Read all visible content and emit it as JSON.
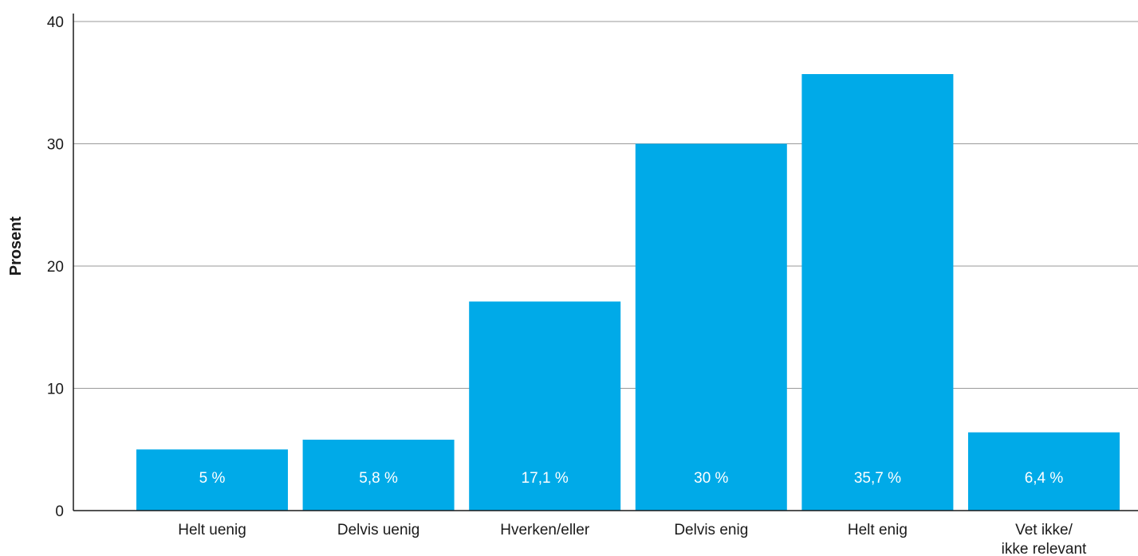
{
  "chart_data": {
    "type": "bar",
    "title": "",
    "xlabel": "",
    "ylabel": "Prosent",
    "ylim": [
      0,
      40
    ],
    "yticks": [
      0,
      10,
      20,
      30,
      40
    ],
    "grid": true,
    "bar_color": "#00aae8",
    "categories": [
      "Helt uenig",
      "Delvis uenig",
      "Hverken/eller",
      "Delvis enig",
      "Helt enig",
      "Vet ikke/\nikke relevant"
    ],
    "values": [
      5,
      5.8,
      17.1,
      30,
      35.7,
      6.4
    ],
    "data_labels": [
      "5 %",
      "5,8 %",
      "17,1 %",
      "30 %",
      "35,7 %",
      "6,4 %"
    ]
  }
}
